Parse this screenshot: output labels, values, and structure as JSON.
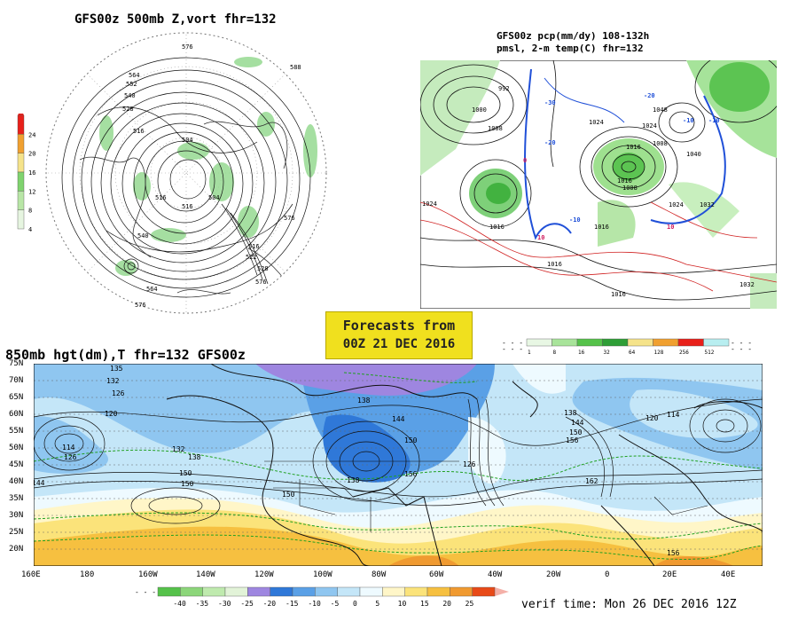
{
  "top_left": {
    "title": "GFS00z  500mb Z,vort   fhr=132",
    "contour_labels": [
      "576",
      "588",
      "564",
      "552",
      "540",
      "528",
      "516",
      "504",
      "516",
      "504",
      "540",
      "576",
      "516",
      "522",
      "528",
      "516",
      "564",
      "576",
      "576"
    ],
    "colorbar": {
      "ticks": [
        "24",
        "20",
        "16",
        "12",
        "8",
        "4"
      ],
      "colors": [
        "#e8201a",
        "#f0a030",
        "#f5e38a",
        "#7fd36e",
        "#b8e6a6",
        "#e6f5e0"
      ]
    }
  },
  "top_right": {
    "title_line1": "GFS00z pcp(mm/dy) 108-132h",
    "title_line2": "pmsl, 2-m temp(C)  fhr=132",
    "pressure_labels": [
      "992",
      "1000",
      "1008",
      "1024",
      "1016",
      "1024",
      "1016",
      "1016",
      "1008",
      "1016",
      "1024",
      "1032",
      "1016",
      "1016",
      "1040",
      "1008",
      "1024",
      "1048",
      "1032"
    ],
    "temp_labels": [
      "-30",
      "-20",
      "-10",
      "0",
      "10",
      "10",
      "-10",
      "-20",
      "-10"
    ],
    "colorbar": {
      "ticks": [
        "1",
        "8",
        "16",
        "32",
        "64",
        "128",
        "256",
        "512"
      ],
      "colors": [
        "#e8f7e4",
        "#a8e49a",
        "#55c24a",
        "#2e9e36",
        "#f5e38a",
        "#f0a030",
        "#e8201a",
        "#b8eef0"
      ]
    }
  },
  "forecast_box": {
    "line1": "Forecasts from",
    "line2": "00Z 21 DEC 2016"
  },
  "bottom": {
    "title": "850mb hgt(dm),T  fhr=132 GFS00z",
    "lat_labels": [
      "75N",
      "70N",
      "65N",
      "60N",
      "55N",
      "50N",
      "45N",
      "40N",
      "35N",
      "30N",
      "25N",
      "20N"
    ],
    "lon_labels": [
      "160E",
      "180",
      "160W",
      "140W",
      "120W",
      "100W",
      "80W",
      "60W",
      "40W",
      "20W",
      "0",
      "20E",
      "40E"
    ],
    "height_labels": [
      "135",
      "132",
      "126",
      "120",
      "114",
      "126",
      "144",
      "132",
      "138",
      "150",
      "150",
      "138",
      "144",
      "150",
      "156",
      "138",
      "126",
      "138",
      "144",
      "150",
      "156",
      "120",
      "114",
      "162",
      "156",
      "150"
    ],
    "colorbar": {
      "ticks": [
        "-40",
        "-35",
        "-30",
        "-25",
        "-20",
        "-15",
        "-10",
        "-5",
        "0",
        "5",
        "10",
        "15",
        "20",
        "25"
      ],
      "colors": [
        "#55c24a",
        "#8cd67a",
        "#bfeaae",
        "#e2f3d8",
        "#9e86e0",
        "#2f78d8",
        "#5aa0e6",
        "#8fc6f0",
        "#c4e6f8",
        "#eefaff",
        "#fff6c8",
        "#fbe37a",
        "#f6c040",
        "#f09a30",
        "#e84a18"
      ]
    },
    "verif_time": "verif time: Mon 26 DEC 2016 12Z"
  }
}
